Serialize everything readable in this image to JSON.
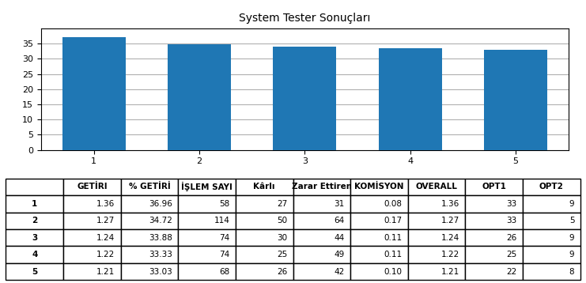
{
  "chart_data": {
    "type": "bar",
    "title": "System Tester Sonuçları",
    "categories": [
      "1",
      "2",
      "3",
      "4",
      "5"
    ],
    "values": [
      36.96,
      34.72,
      33.88,
      33.33,
      33.03
    ],
    "ylim": [
      0,
      40
    ],
    "yticks": [
      0,
      5,
      10,
      15,
      20,
      25,
      30,
      35
    ],
    "grid": true,
    "table": {
      "columns": [
        "",
        "GETİRI",
        "% GETİRİ",
        "İŞLEM SAYI",
        "Kârlı",
        "Zarar Ettiren",
        "KOMİSYON",
        "OVERALL",
        "OPT1",
        "OPT2"
      ],
      "rows": [
        [
          "1",
          "1.36",
          "36.96",
          "58",
          "27",
          "31",
          "0.08",
          "1.36",
          "33",
          "9"
        ],
        [
          "2",
          "1.27",
          "34.72",
          "114",
          "50",
          "64",
          "0.17",
          "1.27",
          "33",
          "5"
        ],
        [
          "3",
          "1.24",
          "33.88",
          "74",
          "30",
          "44",
          "0.11",
          "1.24",
          "26",
          "9"
        ],
        [
          "4",
          "1.22",
          "33.33",
          "74",
          "25",
          "49",
          "0.11",
          "1.22",
          "25",
          "9"
        ],
        [
          "5",
          "1.21",
          "33.03",
          "68",
          "26",
          "42",
          "0.10",
          "1.21",
          "22",
          "8"
        ]
      ]
    }
  }
}
